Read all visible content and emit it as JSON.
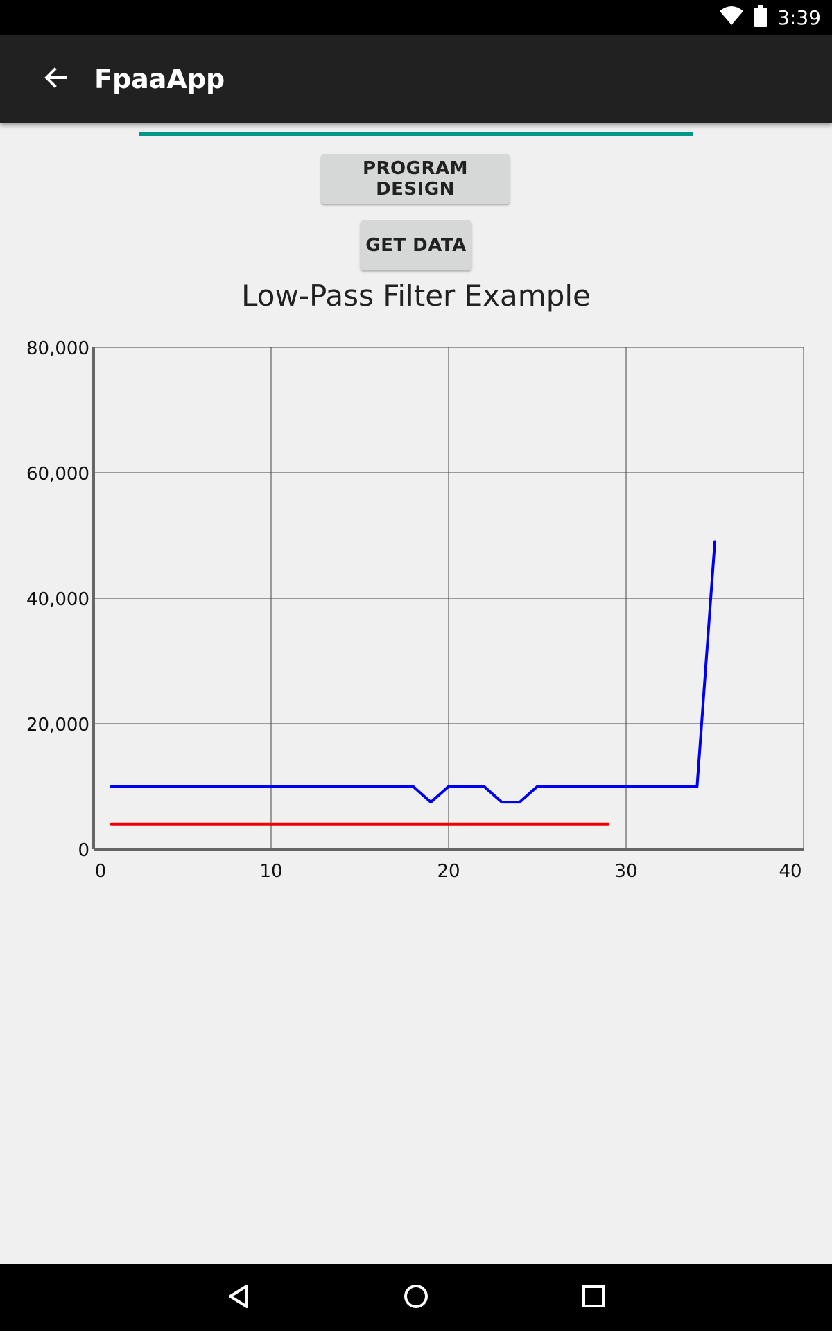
{
  "status_bar": {
    "time": "3:39",
    "icons": [
      "wifi-icon",
      "battery-icon"
    ]
  },
  "app_bar": {
    "title": "FpaaApp",
    "back_icon": "arrow-left-icon"
  },
  "progress": {
    "fraction": 1.0,
    "color": "#009688"
  },
  "buttons": {
    "program_design": "PROGRAM DESIGN",
    "get_data": "GET DATA"
  },
  "chart_data": {
    "type": "line",
    "title": "Low-Pass Filter Example",
    "xlim": [
      0,
      40
    ],
    "ylim": [
      0,
      80000
    ],
    "x_ticks": [
      0,
      10,
      20,
      30,
      40
    ],
    "y_ticks": [
      0,
      20000,
      40000,
      60000,
      80000
    ],
    "x_tick_labels": [
      "0",
      "10",
      "20",
      "30",
      "40"
    ],
    "y_tick_labels": [
      "0",
      "20,000",
      "40,000",
      "60,000",
      "80,000"
    ],
    "grid": true,
    "series": [
      {
        "color": "#0000ee",
        "points": [
          [
            1,
            10000
          ],
          [
            18,
            10000
          ],
          [
            19,
            7500
          ],
          [
            20,
            10000
          ],
          [
            22,
            10000
          ],
          [
            23,
            7500
          ],
          [
            24,
            7500
          ],
          [
            25,
            10000
          ],
          [
            34,
            10000
          ],
          [
            35,
            49000
          ]
        ]
      },
      {
        "color": "#ee0000",
        "points": [
          [
            1,
            4000
          ],
          [
            29,
            4000
          ]
        ]
      }
    ]
  },
  "nav_bar": {
    "icons": [
      "back-triangle-icon",
      "home-circle-icon",
      "recents-square-icon"
    ]
  }
}
